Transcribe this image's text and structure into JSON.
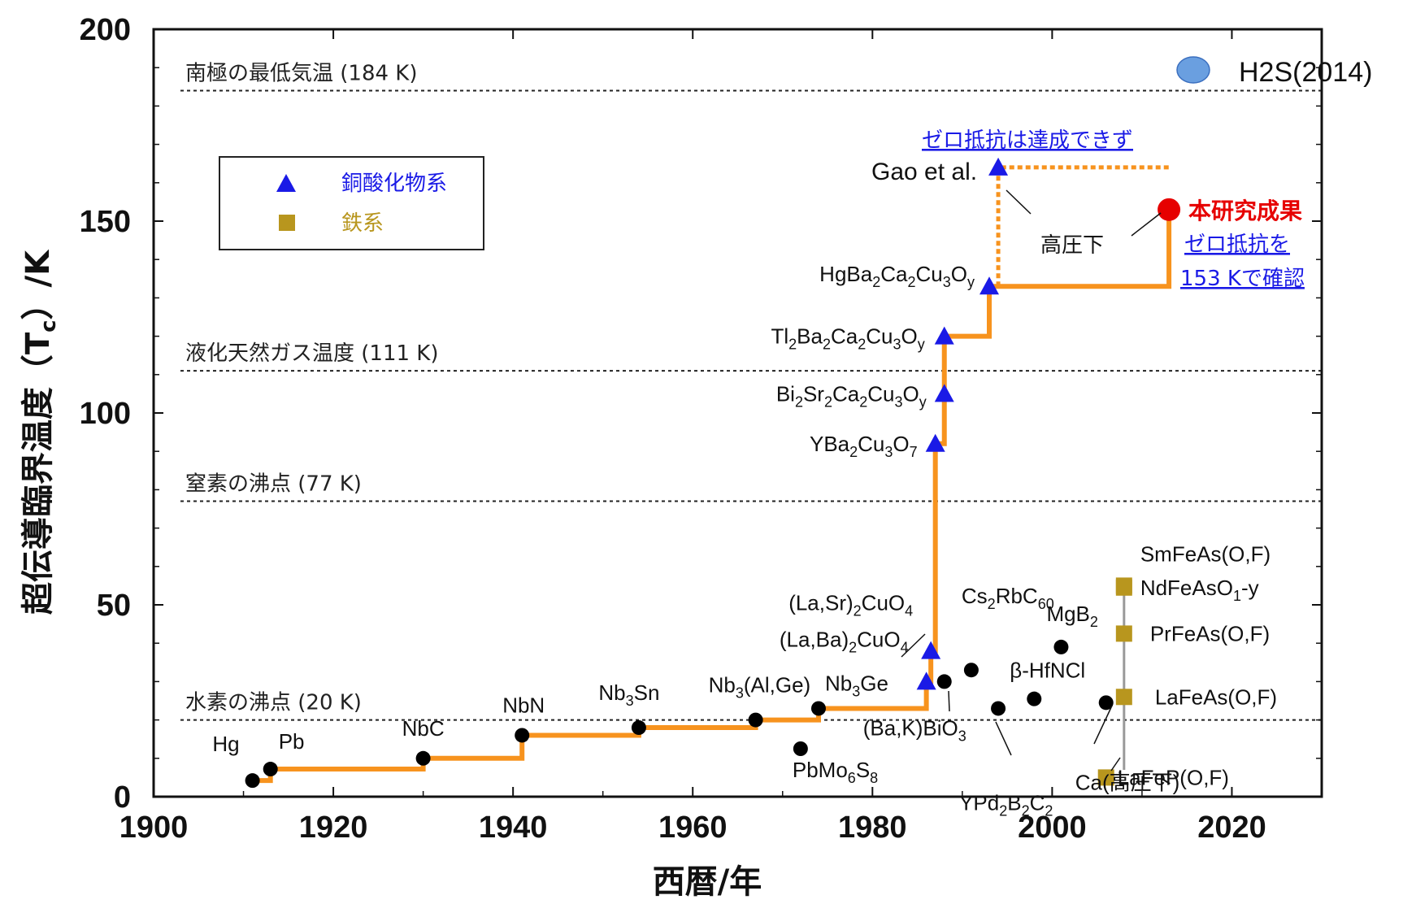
{
  "chart_data": {
    "type": "scatter",
    "xlim": [
      1900,
      2030
    ],
    "ylim": [
      0,
      200
    ],
    "x_ticks": [
      "1900",
      "1920",
      "1940",
      "1960",
      "1980",
      "2000",
      "2020"
    ],
    "y_ticks": [
      "0",
      "50",
      "100",
      "150",
      "200"
    ],
    "xlabel": "西暦/年",
    "ylabel": "超伝導臨界温度（Tc）/K",
    "reference_lines": [
      {
        "y": 184,
        "label": "南極の最低気温 (184 K)"
      },
      {
        "y": 111,
        "label": "液化天然ガス温度 (111 K)"
      },
      {
        "y": 77,
        "label": "窒素の沸点 (77 K)"
      },
      {
        "y": 20,
        "label": "水素の沸点 (20 K)"
      }
    ],
    "legend": [
      {
        "label": "銅酸化物系",
        "marker": "triangle",
        "color": "#1a1ae6"
      },
      {
        "label": "鉄系",
        "marker": "square",
        "color": "#b8961e"
      }
    ],
    "legend_extra": {
      "label": "H2S(2014)",
      "marker": "circle",
      "color": "#6a9fe0"
    },
    "series": [
      {
        "name": "",
        "marker": "circle",
        "color": "#000000",
        "points": [
          {
            "x": 1911,
            "y": 4.2,
            "label": "Hg"
          },
          {
            "x": 1913,
            "y": 7.2,
            "label": "Pb"
          },
          {
            "x": 1930,
            "y": 10,
            "label": "NbC"
          },
          {
            "x": 1941,
            "y": 16,
            "label": "NbN"
          },
          {
            "x": 1954,
            "y": 18,
            "label": "Nb3Sn"
          },
          {
            "x": 1967,
            "y": 20,
            "label": "Nb3(Al,Ge)"
          },
          {
            "x": 1972,
            "y": 12.5,
            "label": "PbMo6S8"
          },
          {
            "x": 1974,
            "y": 23,
            "label": "Nb3Ge"
          },
          {
            "x": 1988,
            "y": 30,
            "label": "(Ba,K)BiO3"
          },
          {
            "x": 1991,
            "y": 33,
            "label": "Cs2RbC60"
          },
          {
            "x": 1994,
            "y": 23,
            "label": "YPd2B2C2"
          },
          {
            "x": 1998,
            "y": 25.5,
            "label": "β-HfNCl"
          },
          {
            "x": 2001,
            "y": 39,
            "label": "MgB2"
          },
          {
            "x": 2006,
            "y": 24.5,
            "label": "Ca(高圧下)"
          }
        ]
      },
      {
        "name": "銅酸化物系",
        "marker": "triangle",
        "color": "#1a1ae6",
        "points": [
          {
            "x": 1986,
            "y": 30,
            "label": "(La,Ba)2CuO4"
          },
          {
            "x": 1986.5,
            "y": 38,
            "label": "(La,Sr)2CuO4"
          },
          {
            "x": 1987,
            "y": 92,
            "label": "YBa2Cu3O7"
          },
          {
            "x": 1988,
            "y": 105,
            "label": "Bi2Sr2Ca2Cu3Oy"
          },
          {
            "x": 1988,
            "y": 120,
            "label": "Tl2Ba2Ca2Cu3Oy"
          },
          {
            "x": 1993,
            "y": 133,
            "label": "HgBa2Ca2Cu3Oy"
          },
          {
            "x": 1994,
            "y": 164,
            "label": "Gao et al."
          }
        ]
      },
      {
        "name": "鉄系",
        "marker": "square",
        "color": "#b8961e",
        "points": [
          {
            "x": 2006,
            "y": 5,
            "label": "LaFeP(O,F)"
          },
          {
            "x": 2008,
            "y": 26,
            "label": "LaFeAs(O,F)"
          },
          {
            "x": 2008,
            "y": 42.5,
            "label": "PrFeAs(O,F)"
          },
          {
            "x": 2008,
            "y": 54.5,
            "label": "NdFeAsO1-y"
          },
          {
            "x": 2008,
            "y": 55,
            "label": "SmFeAs(O,F)"
          }
        ]
      },
      {
        "name": "本研究成果",
        "marker": "circle",
        "color": "#e60000",
        "points": [
          {
            "x": 2013,
            "y": 153,
            "label": "本研究成果"
          }
        ]
      }
    ],
    "record_line": {
      "color": "#f7931e",
      "steps": [
        [
          1911,
          4.2
        ],
        [
          1913,
          7.2
        ],
        [
          1930,
          10
        ],
        [
          1941,
          16
        ],
        [
          1954,
          18
        ],
        [
          1967,
          20
        ],
        [
          1974,
          23
        ],
        [
          1986,
          30
        ],
        [
          1986.5,
          38
        ],
        [
          1987,
          92
        ],
        [
          1988,
          105
        ],
        [
          1988,
          120
        ],
        [
          1993,
          133
        ],
        [
          2013,
          133
        ],
        [
          2013,
          153
        ]
      ],
      "dashed_branch": [
        [
          1994,
          133
        ],
        [
          1994,
          164
        ],
        [
          2013,
          164
        ]
      ]
    },
    "annotations": {
      "gao_label": "Gao et al.",
      "zero_resistance_not_achieved": "ゼロ抵抗は達成できず",
      "high_pressure": "高圧下",
      "this_work": "本研究成果",
      "confirm_line1": "ゼロ抵抗を",
      "confirm_line2": "153 Kで確認"
    }
  }
}
